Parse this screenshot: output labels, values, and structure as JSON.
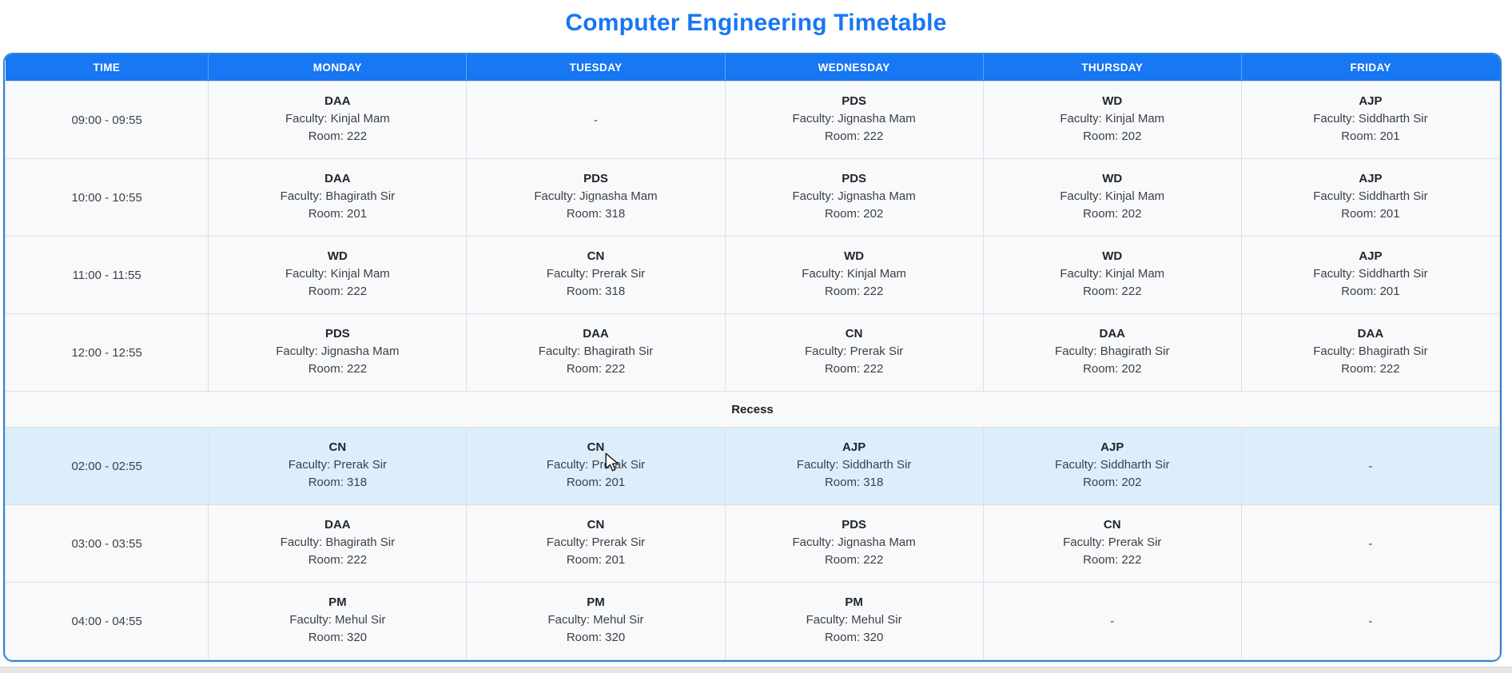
{
  "page": {
    "title": "Computer Engineering Timetable"
  },
  "theme": {
    "accent_blue": "#1877f2",
    "header_text_color": "#ffffff",
    "table_outline": "#2f86d3",
    "row_bg": "#f8f9fa",
    "highlight_row_bg": "#dceefc",
    "cell_border": "#dbdfe3",
    "subject_text": "#212529",
    "body_text": "#3c4146"
  },
  "icons": {
    "cursor_icon": "arrow-pointer"
  },
  "timetable": {
    "headers": [
      "TIME",
      "MONDAY",
      "TUESDAY",
      "WEDNESDAY",
      "THURSDAY",
      "FRIDAY"
    ],
    "empty_cell_text": "-",
    "rows": [
      {
        "type": "slot",
        "time": "09:00 - 09:55",
        "highlighted": false,
        "cells": [
          {
            "subject": "DAA",
            "faculty": "Faculty: Kinjal Mam",
            "room": "Room: 222"
          },
          null,
          {
            "subject": "PDS",
            "faculty": "Faculty: Jignasha Mam",
            "room": "Room: 222"
          },
          {
            "subject": "WD",
            "faculty": "Faculty: Kinjal Mam",
            "room": "Room: 202"
          },
          {
            "subject": "AJP",
            "faculty": "Faculty: Siddharth Sir",
            "room": "Room: 201"
          }
        ]
      },
      {
        "type": "slot",
        "time": "10:00 - 10:55",
        "highlighted": false,
        "cells": [
          {
            "subject": "DAA",
            "faculty": "Faculty: Bhagirath Sir",
            "room": "Room: 201"
          },
          {
            "subject": "PDS",
            "faculty": "Faculty: Jignasha Mam",
            "room": "Room: 318"
          },
          {
            "subject": "PDS",
            "faculty": "Faculty: Jignasha Mam",
            "room": "Room: 202"
          },
          {
            "subject": "WD",
            "faculty": "Faculty: Kinjal Mam",
            "room": "Room: 202"
          },
          {
            "subject": "AJP",
            "faculty": "Faculty: Siddharth Sir",
            "room": "Room: 201"
          }
        ]
      },
      {
        "type": "slot",
        "time": "11:00 - 11:55",
        "highlighted": false,
        "cells": [
          {
            "subject": "WD",
            "faculty": "Faculty: Kinjal Mam",
            "room": "Room: 222"
          },
          {
            "subject": "CN",
            "faculty": "Faculty: Prerak Sir",
            "room": "Room: 318"
          },
          {
            "subject": "WD",
            "faculty": "Faculty: Kinjal Mam",
            "room": "Room: 222"
          },
          {
            "subject": "WD",
            "faculty": "Faculty: Kinjal Mam",
            "room": "Room: 222"
          },
          {
            "subject": "AJP",
            "faculty": "Faculty: Siddharth Sir",
            "room": "Room: 201"
          }
        ]
      },
      {
        "type": "slot",
        "time": "12:00 - 12:55",
        "highlighted": false,
        "cells": [
          {
            "subject": "PDS",
            "faculty": "Faculty: Jignasha Mam",
            "room": "Room: 222"
          },
          {
            "subject": "DAA",
            "faculty": "Faculty: Bhagirath Sir",
            "room": "Room: 222"
          },
          {
            "subject": "CN",
            "faculty": "Faculty: Prerak Sir",
            "room": "Room: 222"
          },
          {
            "subject": "DAA",
            "faculty": "Faculty: Bhagirath Sir",
            "room": "Room: 202"
          },
          {
            "subject": "DAA",
            "faculty": "Faculty: Bhagirath Sir",
            "room": "Room: 222"
          }
        ]
      },
      {
        "type": "recess",
        "label": "Recess"
      },
      {
        "type": "slot",
        "time": "02:00 - 02:55",
        "highlighted": true,
        "cells": [
          {
            "subject": "CN",
            "faculty": "Faculty: Prerak Sir",
            "room": "Room: 318"
          },
          {
            "subject": "CN",
            "faculty": "Faculty: Prerak Sir",
            "room": "Room: 201"
          },
          {
            "subject": "AJP",
            "faculty": "Faculty: Siddharth Sir",
            "room": "Room: 318"
          },
          {
            "subject": "AJP",
            "faculty": "Faculty: Siddharth Sir",
            "room": "Room: 202"
          },
          null
        ]
      },
      {
        "type": "slot",
        "time": "03:00 - 03:55",
        "highlighted": false,
        "cells": [
          {
            "subject": "DAA",
            "faculty": "Faculty: Bhagirath Sir",
            "room": "Room: 222"
          },
          {
            "subject": "CN",
            "faculty": "Faculty: Prerak Sir",
            "room": "Room: 201"
          },
          {
            "subject": "PDS",
            "faculty": "Faculty: Jignasha Mam",
            "room": "Room: 222"
          },
          {
            "subject": "CN",
            "faculty": "Faculty: Prerak Sir",
            "room": "Room: 222"
          },
          null
        ]
      },
      {
        "type": "slot",
        "time": "04:00 - 04:55",
        "highlighted": false,
        "cells": [
          {
            "subject": "PM",
            "faculty": "Faculty: Mehul Sir",
            "room": "Room: 320"
          },
          {
            "subject": "PM",
            "faculty": "Faculty: Mehul Sir",
            "room": "Room: 320"
          },
          {
            "subject": "PM",
            "faculty": "Faculty: Mehul Sir",
            "room": "Room: 320"
          },
          null,
          null
        ]
      }
    ]
  }
}
